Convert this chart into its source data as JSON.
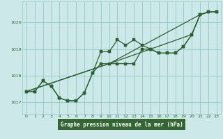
{
  "background_color": "#cce8e8",
  "grid_color": "#99cccc",
  "line_color": "#2d5e2d",
  "xlabel": "Graphe pression niveau de la mer (hPa)",
  "xlabel_bg": "#336633",
  "ylim": [
    1016.55,
    1020.8
  ],
  "xlim": [
    -0.5,
    23.5
  ],
  "yticks": [
    1017,
    1018,
    1019,
    1020
  ],
  "xticks": [
    0,
    1,
    2,
    3,
    4,
    5,
    6,
    7,
    8,
    9,
    10,
    11,
    12,
    13,
    14,
    15,
    16,
    17,
    18,
    19,
    20,
    21,
    22,
    23
  ],
  "series": [
    {
      "x": [
        0,
        1,
        2,
        3,
        4,
        5,
        6,
        7,
        8,
        9,
        10,
        11,
        12,
        13,
        14,
        15,
        16,
        17,
        18,
        19,
        20,
        21,
        22,
        23
      ],
      "y": [
        1017.4,
        1017.4,
        1017.8,
        1017.6,
        1017.15,
        1017.05,
        1017.05,
        1017.35,
        1018.1,
        1018.45,
        1018.45,
        1018.45,
        1018.45,
        1018.45,
        1019.0,
        1019.0,
        1018.85,
        1018.85,
        1018.85,
        1019.1,
        1019.55,
        1020.3,
        1020.4,
        1020.4
      ],
      "has_markers": true
    },
    {
      "x": [
        0,
        1,
        2,
        3,
        4,
        5,
        6,
        7,
        8,
        9,
        10,
        11,
        12,
        13,
        14,
        15,
        16,
        17,
        18,
        19,
        20,
        21,
        22,
        23
      ],
      "y": [
        1017.4,
        1017.4,
        1017.8,
        1017.6,
        1017.15,
        1017.05,
        1017.05,
        1017.35,
        1018.1,
        1018.9,
        1018.9,
        1019.35,
        1019.15,
        1019.35,
        1019.15,
        1019.0,
        1018.85,
        1018.85,
        1018.85,
        1019.1,
        1019.55,
        1020.3,
        1020.4,
        1020.4
      ],
      "has_markers": true
    },
    {
      "x": [
        0,
        10,
        21,
        22,
        23
      ],
      "y": [
        1017.4,
        1018.45,
        1020.3,
        1020.4,
        1020.4
      ],
      "has_markers": false
    },
    {
      "x": [
        0,
        10,
        20,
        21,
        22,
        23
      ],
      "y": [
        1017.4,
        1018.45,
        1019.55,
        1020.3,
        1020.4,
        1020.4
      ],
      "has_markers": false
    }
  ]
}
